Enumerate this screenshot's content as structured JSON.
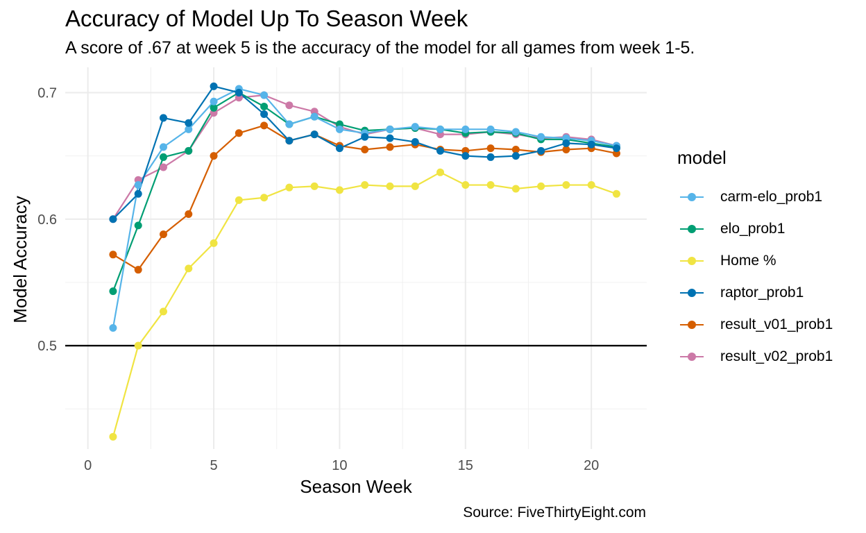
{
  "chart_data": {
    "type": "line",
    "title": "Accuracy of Model Up To Season Week",
    "subtitle": "A score of .67 at week 5 is the accuracy of the model for all games from week 1-5.",
    "xlabel": "Season Week",
    "ylabel": "Model Accuracy",
    "caption": "Source: FiveThirtyEight.com",
    "legend_title": "model",
    "legend_position": "right",
    "grid": true,
    "xlim": [
      -0.9,
      22.2
    ],
    "ylim": [
      0.4183,
      0.72
    ],
    "x_ticks": [
      0,
      5,
      10,
      15,
      20
    ],
    "x_tick_labels": [
      "0",
      "5",
      "10",
      "15",
      "20"
    ],
    "y_ticks": [
      0.5,
      0.6,
      0.7
    ],
    "y_tick_labels": [
      "0.5",
      "0.6",
      "0.7"
    ],
    "reference_line": {
      "y": 0.5,
      "color": "#000000"
    },
    "x": [
      1,
      2,
      3,
      4,
      5,
      6,
      7,
      8,
      9,
      10,
      11,
      12,
      13,
      14,
      15,
      16,
      17,
      18,
      19,
      20,
      21
    ],
    "series": [
      {
        "name": "Home %",
        "color": "#F0E442",
        "values": [
          0.428,
          0.5,
          0.527,
          0.561,
          0.581,
          0.615,
          0.617,
          0.625,
          0.626,
          0.623,
          0.627,
          0.626,
          0.626,
          0.637,
          0.627,
          0.627,
          0.624,
          0.626,
          0.627,
          0.627,
          0.62
        ]
      },
      {
        "name": "result_v01_prob1",
        "color": "#D55E00",
        "values": [
          0.572,
          0.56,
          0.588,
          0.604,
          0.65,
          0.668,
          0.674,
          0.662,
          0.667,
          0.658,
          0.655,
          0.657,
          0.659,
          0.655,
          0.654,
          0.656,
          0.655,
          0.653,
          0.655,
          0.656,
          0.652
        ]
      },
      {
        "name": "result_v02_prob1",
        "color": "#CC79A7",
        "values": [
          0.6,
          0.631,
          0.641,
          0.654,
          0.684,
          0.696,
          0.698,
          0.69,
          0.685,
          0.673,
          0.667,
          0.671,
          0.672,
          0.667,
          0.667,
          0.669,
          0.667,
          0.664,
          0.665,
          0.663,
          0.658
        ]
      },
      {
        "name": "elo_prob1",
        "color": "#009E73",
        "values": [
          0.543,
          0.595,
          0.649,
          0.654,
          0.688,
          0.7,
          0.689,
          0.675,
          0.681,
          0.675,
          0.67,
          0.671,
          0.672,
          0.671,
          0.668,
          0.669,
          0.668,
          0.663,
          0.663,
          0.66,
          0.657
        ]
      },
      {
        "name": "carm-elo_prob1",
        "color": "#56B4E9",
        "values": [
          0.514,
          0.627,
          0.657,
          0.671,
          0.693,
          0.703,
          0.698,
          0.675,
          0.681,
          0.671,
          0.668,
          0.671,
          0.673,
          0.671,
          0.671,
          0.671,
          0.669,
          0.665,
          0.664,
          0.662,
          0.658
        ]
      },
      {
        "name": "raptor_prob1",
        "color": "#0072B2",
        "values": [
          0.6,
          0.62,
          0.68,
          0.676,
          0.705,
          0.7,
          0.683,
          0.662,
          0.667,
          0.656,
          0.665,
          0.664,
          0.661,
          0.654,
          0.65,
          0.649,
          0.65,
          0.654,
          0.66,
          0.659,
          0.656
        ]
      }
    ],
    "legend_order": [
      "carm-elo_prob1",
      "elo_prob1",
      "Home %",
      "raptor_prob1",
      "result_v01_prob1",
      "result_v02_prob1"
    ]
  }
}
